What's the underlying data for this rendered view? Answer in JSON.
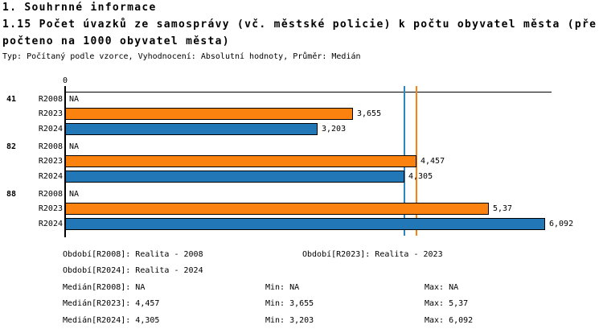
{
  "header": {
    "section_title": "1. Souhrnné informace",
    "indicator_title_line1": "1.15 Počet úvazků ze samosprávy (vč. městské policie) k počtu obyvatel města (pře",
    "indicator_title_line2": "počteno na 1000 obyvatel města)",
    "meta_line": "Typ: Počítaný podle vzorce, Vyhodnocení: Absolutní hodnoty, Průměr: Medián"
  },
  "chart_data": {
    "type": "bar",
    "orientation": "horizontal",
    "x_axis": {
      "origin_label": "0",
      "xlim": [
        0,
        6.2
      ],
      "grid": false
    },
    "series_colors": {
      "R2023": "#fb820e",
      "R2024": "#2277b6"
    },
    "groups": [
      {
        "label": "41",
        "rows": [
          {
            "series": "R2008",
            "value": null,
            "display": "NA"
          },
          {
            "series": "R2023",
            "value": 3.655,
            "display": "3,655"
          },
          {
            "series": "R2024",
            "value": 3.203,
            "display": "3,203"
          }
        ]
      },
      {
        "label": "82",
        "rows": [
          {
            "series": "R2008",
            "value": null,
            "display": "NA"
          },
          {
            "series": "R2023",
            "value": 4.457,
            "display": "4,457"
          },
          {
            "series": "R2024",
            "value": 4.305,
            "display": "4,305"
          }
        ]
      },
      {
        "label": "88",
        "rows": [
          {
            "series": "R2008",
            "value": null,
            "display": "NA"
          },
          {
            "series": "R2023",
            "value": 5.37,
            "display": "5,37"
          },
          {
            "series": "R2024",
            "value": 6.092,
            "display": "6,092"
          }
        ]
      }
    ],
    "median_lines": [
      {
        "series": "R2024",
        "value": 4.305,
        "color": "#2e86c1"
      },
      {
        "series": "R2023",
        "value": 4.457,
        "color": "#fb820e"
      }
    ],
    "stats": {
      "R2008": {
        "period": "Realita - 2008",
        "median": "NA",
        "min": "NA",
        "max": "NA"
      },
      "R2023": {
        "period": "Realita - 2023",
        "median": "4,457",
        "min": "3,655",
        "max": "5,37"
      },
      "R2024": {
        "period": "Realita - 2024",
        "median": "4,305",
        "min": "3,203",
        "max": "6,092"
      }
    }
  },
  "legend": {
    "obdobi_r2008": "Období[R2008]: Realita - 2008",
    "obdobi_r2023": "Období[R2023]: Realita - 2023",
    "obdobi_r2024": "Období[R2024]: Realita - 2024",
    "median_r2008": "Medián[R2008]: NA",
    "median_r2023": "Medián[R2023]: 4,457",
    "median_r2024": "Medián[R2024]: 4,305",
    "min_r2008": "Min: NA",
    "min_r2023": "Min: 3,655",
    "min_r2024": "Min: 3,203",
    "max_r2008": "Max: NA",
    "max_r2023": "Max: 5,37",
    "max_r2024": "Max: 6,092"
  }
}
